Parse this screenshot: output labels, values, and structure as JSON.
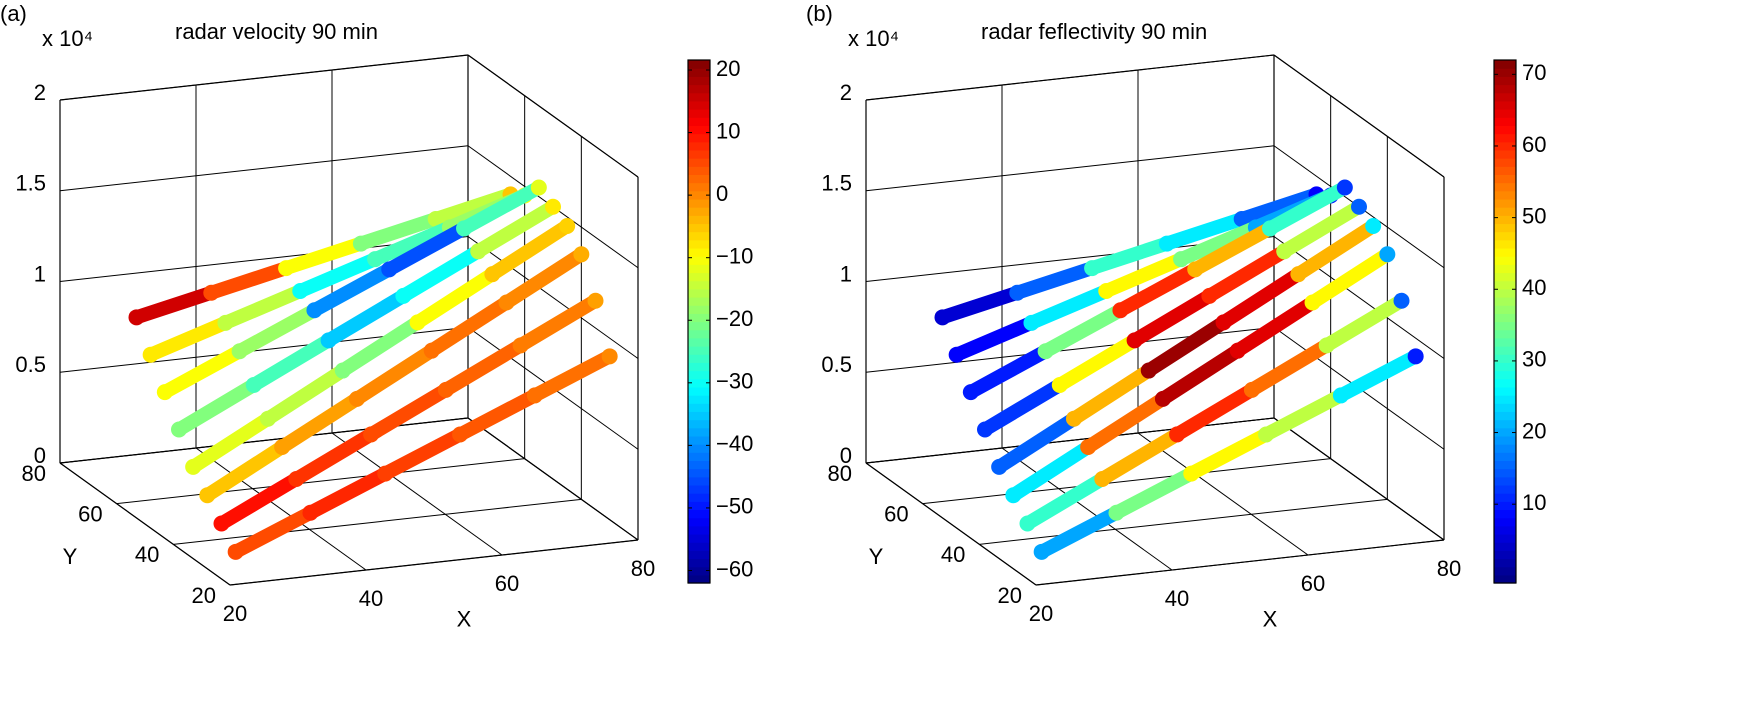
{
  "chart_data": [
    {
      "type": "scatter3d",
      "panel_label": "(a)",
      "title": "radar velocity 90 min",
      "z_multiplier": "x 10⁴",
      "xlabel": "X",
      "ylabel": "Y",
      "xlim": [
        20,
        80
      ],
      "ylim": [
        20,
        80
      ],
      "zlim": [
        0,
        20000
      ],
      "xticks": [
        20,
        40,
        60,
        80
      ],
      "yticks": [
        20,
        40,
        60,
        80
      ],
      "zticks": [
        0,
        {
          "value": 5000,
          "label": "0.5"
        },
        {
          "value": 10000,
          "label": "1"
        },
        {
          "value": 15000,
          "label": "1.5"
        },
        {
          "value": 20000,
          "label": "2"
        }
      ],
      "grid": true,
      "colormap": "jet",
      "clim": [
        -62,
        21.6
      ],
      "cticks": [
        {
          "value": -60,
          "label": "−60"
        },
        {
          "value": -50,
          "label": "−50"
        },
        {
          "value": -40,
          "label": "−40"
        },
        {
          "value": -30,
          "label": "−30"
        },
        {
          "value": -20,
          "label": "−20"
        },
        {
          "value": -10,
          "label": "−10"
        },
        0,
        10,
        20
      ],
      "series": [
        {
          "x": [
            25,
            36,
            47,
            58,
            69,
            80
          ],
          "y": [
            30,
            30,
            30,
            30,
            30,
            30
          ],
          "z": [
            500,
            2200,
            3900,
            5600,
            7300,
            9000
          ],
          "c": [
            5,
            8,
            6,
            4,
            2,
            0
          ]
        },
        {
          "x": [
            25,
            36,
            47,
            58,
            69,
            80
          ],
          "y": [
            35,
            35,
            35,
            35,
            35,
            35
          ],
          "z": [
            1500,
            3500,
            5500,
            7500,
            9500,
            11500
          ],
          "c": [
            10,
            7,
            5,
            3,
            1,
            -2
          ]
        },
        {
          "x": [
            25,
            36,
            47,
            58,
            69,
            80
          ],
          "y": [
            40,
            40,
            40,
            40,
            40,
            40
          ],
          "z": [
            2500,
            4700,
            6900,
            9100,
            11300,
            13500
          ],
          "c": [
            -5,
            -2,
            0,
            2,
            0,
            -3
          ]
        },
        {
          "x": [
            25,
            36,
            47,
            58,
            69,
            80
          ],
          "y": [
            45,
            45,
            45,
            45,
            45,
            45
          ],
          "z": [
            3500,
            5700,
            7900,
            10100,
            12300,
            14500
          ],
          "c": [
            -12,
            -15,
            -20,
            -10,
            -5,
            -6
          ]
        },
        {
          "x": [
            25,
            36,
            47,
            58,
            69,
            80
          ],
          "y": [
            50,
            50,
            50,
            50,
            50,
            50
          ],
          "z": [
            5000,
            7000,
            9000,
            11000,
            13000,
            15000
          ],
          "c": [
            -20,
            -25,
            -35,
            -30,
            -15,
            -8
          ]
        },
        {
          "x": [
            25,
            36,
            47,
            58,
            69,
            80
          ],
          "y": [
            55,
            55,
            55,
            55,
            55,
            55
          ],
          "z": [
            6500,
            8300,
            10100,
            11900,
            13700,
            15500
          ],
          "c": [
            -10,
            -18,
            -40,
            -45,
            -25,
            -12
          ]
        },
        {
          "x": [
            25,
            36,
            47,
            58,
            69,
            80
          ],
          "y": [
            60,
            60,
            60,
            60,
            60,
            60
          ],
          "z": [
            8000,
            9300,
            10600,
            11900,
            13200,
            14500
          ],
          "c": [
            -8,
            -15,
            -30,
            -25,
            -18,
            -10
          ]
        },
        {
          "x": [
            25,
            36,
            47,
            58,
            69,
            80
          ],
          "y": [
            65,
            65,
            65,
            65,
            65,
            65
          ],
          "z": [
            9500,
            10400,
            11300,
            12200,
            13100,
            14000
          ],
          "c": [
            15,
            5,
            -10,
            -20,
            -15,
            -5
          ]
        }
      ]
    },
    {
      "type": "scatter3d",
      "panel_label": "(b)",
      "title": "radar feflectivity 90 min",
      "z_multiplier": "x 10⁴",
      "xlabel": "X",
      "ylabel": "Y",
      "xlim": [
        20,
        80
      ],
      "ylim": [
        20,
        80
      ],
      "zlim": [
        0,
        20000
      ],
      "xticks": [
        20,
        40,
        60,
        80
      ],
      "yticks": [
        20,
        40,
        60,
        80
      ],
      "zticks": [
        0,
        {
          "value": 5000,
          "label": "0.5"
        },
        {
          "value": 10000,
          "label": "1"
        },
        {
          "value": 15000,
          "label": "1.5"
        },
        {
          "value": 20000,
          "label": "2"
        }
      ],
      "grid": true,
      "colormap": "jet",
      "clim": [
        -1,
        72
      ],
      "cticks": [
        10,
        20,
        30,
        40,
        50,
        60,
        70
      ],
      "series": [
        {
          "x": [
            25,
            36,
            47,
            58,
            69,
            80
          ],
          "y": [
            30,
            30,
            30,
            30,
            30,
            30
          ],
          "z": [
            500,
            2200,
            3900,
            5600,
            7300,
            9000
          ],
          "c": [
            20,
            35,
            45,
            40,
            25,
            10
          ]
        },
        {
          "x": [
            25,
            36,
            47,
            58,
            69,
            80
          ],
          "y": [
            35,
            35,
            35,
            35,
            35,
            35
          ],
          "z": [
            1500,
            3500,
            5500,
            7500,
            9500,
            11500
          ],
          "c": [
            30,
            50,
            60,
            55,
            40,
            15
          ]
        },
        {
          "x": [
            25,
            36,
            47,
            58,
            69,
            80
          ],
          "y": [
            40,
            40,
            40,
            40,
            40,
            40
          ],
          "z": [
            2500,
            4700,
            6900,
            9100,
            11300,
            13500
          ],
          "c": [
            25,
            55,
            68,
            65,
            45,
            20
          ]
        },
        {
          "x": [
            25,
            36,
            47,
            58,
            69,
            80
          ],
          "y": [
            45,
            45,
            45,
            45,
            45,
            45
          ],
          "z": [
            3500,
            5700,
            7900,
            10100,
            12300,
            14500
          ],
          "c": [
            15,
            50,
            70,
            65,
            50,
            25
          ]
        },
        {
          "x": [
            25,
            36,
            47,
            58,
            69,
            80
          ],
          "y": [
            50,
            50,
            50,
            50,
            50,
            50
          ],
          "z": [
            5000,
            7000,
            9000,
            11000,
            13000,
            15000
          ],
          "c": [
            12,
            45,
            65,
            60,
            40,
            15
          ]
        },
        {
          "x": [
            25,
            36,
            47,
            58,
            69,
            80
          ],
          "y": [
            55,
            55,
            55,
            55,
            55,
            55
          ],
          "z": [
            6500,
            8300,
            10100,
            11900,
            13700,
            15500
          ],
          "c": [
            10,
            35,
            60,
            50,
            30,
            12
          ]
        },
        {
          "x": [
            25,
            36,
            47,
            58,
            69,
            80
          ],
          "y": [
            60,
            60,
            60,
            60,
            60,
            60
          ],
          "z": [
            8000,
            9300,
            10600,
            11900,
            13200,
            14500
          ],
          "c": [
            8,
            25,
            45,
            35,
            20,
            10
          ]
        },
        {
          "x": [
            25,
            36,
            47,
            58,
            69,
            80
          ],
          "y": [
            65,
            65,
            65,
            65,
            65,
            65
          ],
          "z": [
            9500,
            10400,
            11300,
            12200,
            13100,
            14000
          ],
          "c": [
            5,
            15,
            30,
            25,
            15,
            8
          ]
        }
      ]
    }
  ]
}
